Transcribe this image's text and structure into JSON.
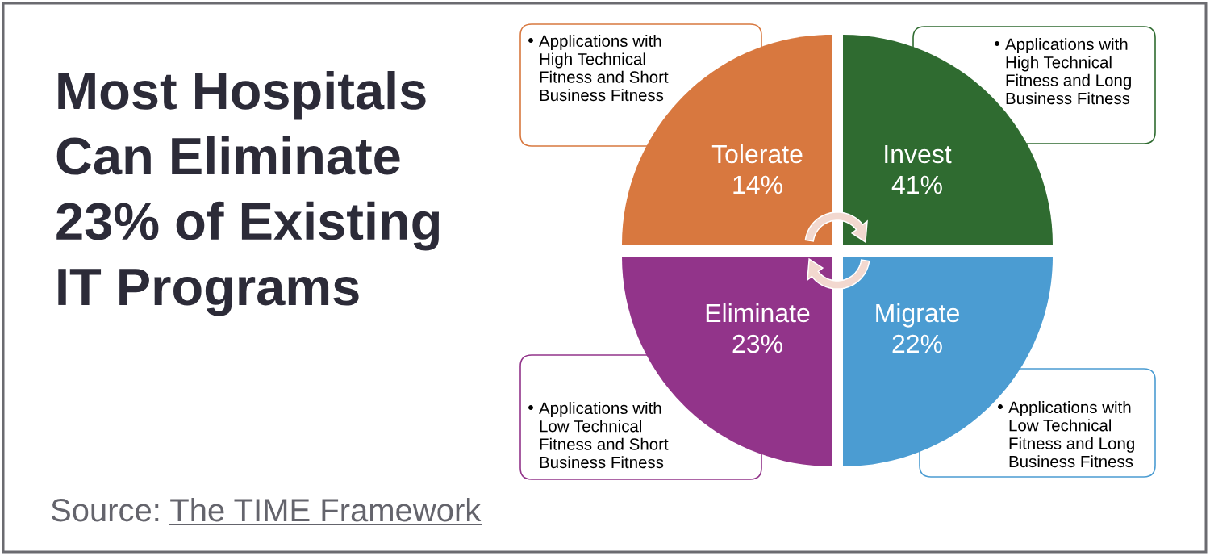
{
  "chart_data": {
    "type": "other",
    "title": "Most Hospitals Can Eliminate 23% of Existing IT Programs",
    "categories": [
      "Tolerate",
      "Invest",
      "Eliminate",
      "Migrate"
    ],
    "values": [
      14,
      41,
      23,
      22
    ],
    "value_labels": [
      "14%",
      "41%",
      "23%",
      "22%"
    ],
    "colors": [
      "#d8783f",
      "#2f6b30",
      "#92348a",
      "#4b9cd2"
    ],
    "annotations": [
      "Applications with High Technical Fitness and Short Business Fitness",
      "Applications with High Technical Fitness and Long Business Fitness",
      "Applications with Low Technical Fitness and Short Business Fitness",
      "Applications with Low Technical Fitness and Long Business Fitness",
      "Source: The TIME Framework"
    ]
  }
}
